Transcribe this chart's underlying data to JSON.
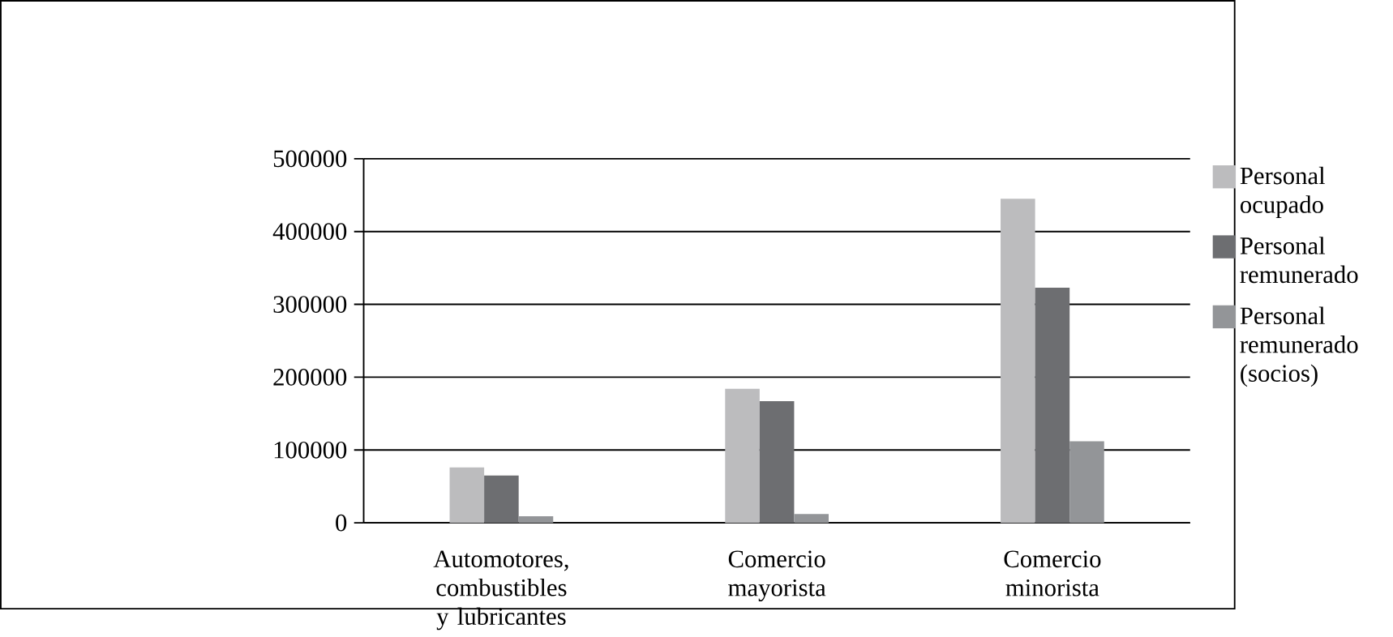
{
  "chart_data": {
    "type": "bar",
    "categories": [
      "Automotores, combustibles y lubricantes",
      "Comercio mayorista",
      "Comercio minorista"
    ],
    "series": [
      {
        "name": "Personal ocupado",
        "color": "#bcbcbe",
        "values": [
          76000,
          184000,
          445000
        ]
      },
      {
        "name": "Personal remunerado",
        "color": "#6d6e71",
        "values": [
          65000,
          167000,
          323000
        ]
      },
      {
        "name": "Personal remunerado (socios)",
        "color": "#939598",
        "values": [
          9000,
          12000,
          112000
        ]
      }
    ],
    "ylim": [
      0,
      500000
    ],
    "yticks": [
      0,
      100000,
      200000,
      300000,
      400000,
      500000
    ],
    "grid": "y",
    "legend": "right"
  }
}
